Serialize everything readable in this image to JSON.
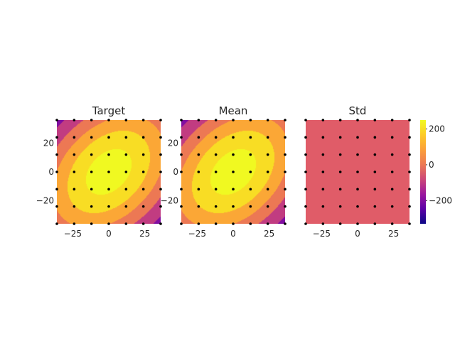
{
  "chart_data": [
    {
      "type": "heatmap",
      "title": "Target",
      "xlabel": "",
      "ylabel": "",
      "xlim": [
        -36,
        36
      ],
      "ylim": [
        -36,
        36
      ],
      "xticks": [
        "−25",
        "0",
        "25"
      ],
      "xtick_values": [
        -25,
        0,
        25
      ],
      "yticks": [
        "20",
        "0",
        "−20"
      ],
      "ytick_values": [
        20,
        0,
        -20
      ],
      "colormap": "plasma",
      "field": {
        "type": "tilted-gaussian",
        "peak": 300,
        "sigma_major": 48,
        "sigma_minor": 33,
        "angle_deg": 45,
        "center": [
          0,
          0
        ],
        "offset": -400
      },
      "contour_levels": [
        -350,
        -250,
        -150,
        -50,
        50,
        150,
        250,
        350
      ],
      "sample_points": {
        "x": [
          -36,
          -24,
          -12,
          0,
          12,
          24,
          36
        ],
        "y": [
          -36,
          -24,
          -12,
          0,
          12,
          24,
          36
        ]
      },
      "grid": false
    },
    {
      "type": "heatmap",
      "title": "Mean",
      "xlabel": "",
      "ylabel": "",
      "xlim": [
        -36,
        36
      ],
      "ylim": [
        -36,
        36
      ],
      "xticks": [
        "−25",
        "0",
        "25"
      ],
      "xtick_values": [
        -25,
        0,
        25
      ],
      "yticks": [
        "20",
        "0",
        "−20"
      ],
      "ytick_values": [
        20,
        0,
        -20
      ],
      "colormap": "plasma",
      "field": {
        "type": "tilted-gaussian",
        "peak": 300,
        "sigma_major": 48,
        "sigma_minor": 33,
        "angle_deg": 45,
        "center": [
          0,
          0
        ],
        "offset": -400
      },
      "contour_levels": [
        -350,
        -250,
        -150,
        -50,
        50,
        150,
        250,
        350
      ],
      "sample_points": {
        "x": [
          -36,
          -24,
          -12,
          0,
          12,
          24,
          36
        ],
        "y": [
          -36,
          -24,
          -12,
          0,
          12,
          24,
          36
        ]
      },
      "grid": false
    },
    {
      "type": "heatmap",
      "title": "Std",
      "xlabel": "",
      "ylabel": "",
      "xlim": [
        -36,
        36
      ],
      "ylim": [
        -36,
        36
      ],
      "xticks": [
        "−25",
        "0",
        "25"
      ],
      "xtick_values": [
        -25,
        0,
        25
      ],
      "colormap": "plasma",
      "uniform_value": 0,
      "uniform_color": "#e05c68",
      "sample_points": {
        "x": [
          -36,
          -24,
          -12,
          0,
          12,
          24,
          36
        ],
        "y": [
          -36,
          -24,
          -12,
          0,
          12,
          24,
          36
        ]
      },
      "grid": false
    }
  ],
  "colorbar": {
    "colormap": "plasma",
    "vmin": -330,
    "vmax": 250,
    "ticks": [
      "200",
      "0",
      "−200"
    ],
    "tick_values": [
      200,
      0,
      -200
    ]
  },
  "colors": {
    "plasma": [
      "#0d0887",
      "#5c01a6",
      "#9c179e",
      "#cc4778",
      "#ed7953",
      "#fb9f3a",
      "#fdca26",
      "#f0f921"
    ],
    "point": "#000000",
    "text": "#262626"
  }
}
